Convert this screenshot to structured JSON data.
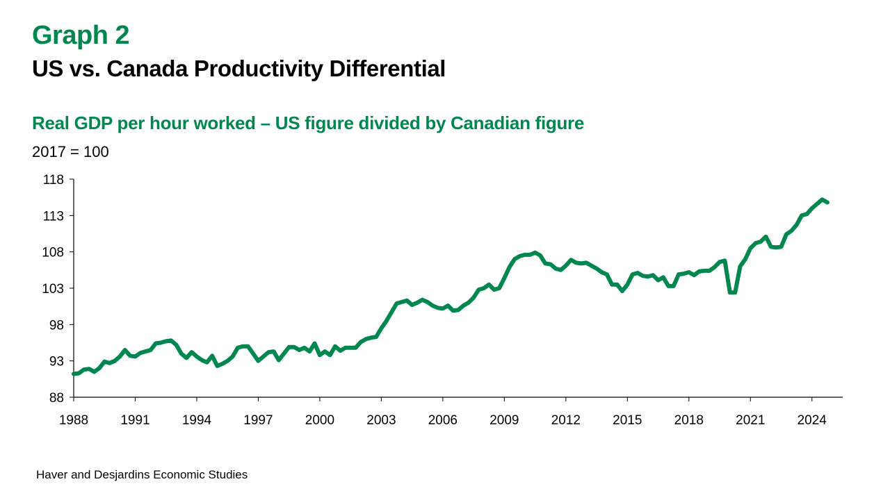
{
  "header": {
    "graph_label": "Graph 2",
    "title": "US vs. Canada Productivity Differential"
  },
  "footer": {
    "source": "Haver and Desjardins Economic Studies"
  },
  "colors": {
    "accent": "#00874E",
    "text": "#000000",
    "axis": "#000000"
  },
  "chart_data": {
    "type": "line",
    "title": "Real GDP per hour worked – US figure divided by Canadian figure",
    "ylabel": "2017 = 100",
    "xlabel": "",
    "xlim": [
      1988,
      2025.5
    ],
    "ylim": [
      88,
      118
    ],
    "xticks": [
      1988,
      1991,
      1994,
      1997,
      2000,
      2003,
      2006,
      2009,
      2012,
      2015,
      2018,
      2021,
      2024
    ],
    "yticks": [
      88,
      93,
      98,
      103,
      108,
      113,
      118
    ],
    "grid": false,
    "series": [
      {
        "color": "#00874E",
        "points": [
          [
            1988.0,
            91.2
          ],
          [
            1988.25,
            91.3
          ],
          [
            1988.5,
            91.8
          ],
          [
            1988.75,
            91.9
          ],
          [
            1989.0,
            91.5
          ],
          [
            1989.25,
            92.0
          ],
          [
            1989.5,
            92.9
          ],
          [
            1989.75,
            92.7
          ],
          [
            1990.0,
            93.0
          ],
          [
            1990.25,
            93.6
          ],
          [
            1990.5,
            94.5
          ],
          [
            1990.75,
            93.7
          ],
          [
            1991.0,
            93.6
          ],
          [
            1991.25,
            94.1
          ],
          [
            1991.5,
            94.3
          ],
          [
            1991.75,
            94.5
          ],
          [
            1992.0,
            95.4
          ],
          [
            1992.25,
            95.5
          ],
          [
            1992.5,
            95.7
          ],
          [
            1992.75,
            95.8
          ],
          [
            1993.0,
            95.2
          ],
          [
            1993.25,
            94.0
          ],
          [
            1993.5,
            93.4
          ],
          [
            1993.75,
            94.2
          ],
          [
            1994.0,
            93.6
          ],
          [
            1994.25,
            93.1
          ],
          [
            1994.5,
            92.8
          ],
          [
            1994.75,
            93.7
          ],
          [
            1995.0,
            92.3
          ],
          [
            1995.25,
            92.6
          ],
          [
            1995.5,
            93.0
          ],
          [
            1995.75,
            93.6
          ],
          [
            1996.0,
            94.8
          ],
          [
            1996.25,
            95.0
          ],
          [
            1996.5,
            95.0
          ],
          [
            1996.75,
            94.0
          ],
          [
            1997.0,
            93.0
          ],
          [
            1997.25,
            93.6
          ],
          [
            1997.5,
            94.2
          ],
          [
            1997.75,
            94.3
          ],
          [
            1998.0,
            93.1
          ],
          [
            1998.25,
            94.0
          ],
          [
            1998.5,
            94.9
          ],
          [
            1998.75,
            94.9
          ],
          [
            1999.0,
            94.5
          ],
          [
            1999.25,
            94.8
          ],
          [
            1999.5,
            94.3
          ],
          [
            1999.75,
            95.4
          ],
          [
            2000.0,
            93.8
          ],
          [
            2000.25,
            94.3
          ],
          [
            2000.5,
            93.8
          ],
          [
            2000.75,
            95.0
          ],
          [
            2001.0,
            94.4
          ],
          [
            2001.25,
            94.8
          ],
          [
            2001.5,
            94.8
          ],
          [
            2001.75,
            94.8
          ],
          [
            2002.0,
            95.6
          ],
          [
            2002.25,
            96.0
          ],
          [
            2002.5,
            96.2
          ],
          [
            2002.75,
            96.3
          ],
          [
            2003.0,
            97.5
          ],
          [
            2003.25,
            98.5
          ],
          [
            2003.5,
            99.7
          ],
          [
            2003.75,
            100.9
          ],
          [
            2004.0,
            101.1
          ],
          [
            2004.25,
            101.3
          ],
          [
            2004.5,
            100.7
          ],
          [
            2004.75,
            101.0
          ],
          [
            2005.0,
            101.4
          ],
          [
            2005.25,
            101.1
          ],
          [
            2005.5,
            100.6
          ],
          [
            2005.75,
            100.3
          ],
          [
            2006.0,
            100.2
          ],
          [
            2006.25,
            100.6
          ],
          [
            2006.5,
            99.9
          ],
          [
            2006.75,
            100.0
          ],
          [
            2007.0,
            100.6
          ],
          [
            2007.25,
            101.0
          ],
          [
            2007.5,
            101.7
          ],
          [
            2007.75,
            102.8
          ],
          [
            2008.0,
            103.0
          ],
          [
            2008.25,
            103.5
          ],
          [
            2008.5,
            102.8
          ],
          [
            2008.75,
            103.0
          ],
          [
            2009.0,
            104.4
          ],
          [
            2009.25,
            105.9
          ],
          [
            2009.5,
            107.0
          ],
          [
            2009.75,
            107.4
          ],
          [
            2010.0,
            107.6
          ],
          [
            2010.25,
            107.6
          ],
          [
            2010.5,
            107.9
          ],
          [
            2010.75,
            107.5
          ],
          [
            2011.0,
            106.4
          ],
          [
            2011.25,
            106.3
          ],
          [
            2011.5,
            105.7
          ],
          [
            2011.75,
            105.5
          ],
          [
            2012.0,
            106.1
          ],
          [
            2012.25,
            106.9
          ],
          [
            2012.5,
            106.5
          ],
          [
            2012.75,
            106.4
          ],
          [
            2013.0,
            106.5
          ],
          [
            2013.25,
            106.1
          ],
          [
            2013.5,
            105.7
          ],
          [
            2013.75,
            105.2
          ],
          [
            2014.0,
            104.9
          ],
          [
            2014.25,
            103.5
          ],
          [
            2014.5,
            103.5
          ],
          [
            2014.75,
            102.6
          ],
          [
            2015.0,
            103.5
          ],
          [
            2015.25,
            104.9
          ],
          [
            2015.5,
            105.1
          ],
          [
            2015.75,
            104.7
          ],
          [
            2016.0,
            104.6
          ],
          [
            2016.25,
            104.8
          ],
          [
            2016.5,
            104.1
          ],
          [
            2016.75,
            104.5
          ],
          [
            2017.0,
            103.3
          ],
          [
            2017.25,
            103.3
          ],
          [
            2017.5,
            104.9
          ],
          [
            2017.75,
            105.0
          ],
          [
            2018.0,
            105.2
          ],
          [
            2018.25,
            104.8
          ],
          [
            2018.5,
            105.3
          ],
          [
            2018.75,
            105.4
          ],
          [
            2019.0,
            105.4
          ],
          [
            2019.25,
            105.9
          ],
          [
            2019.5,
            106.6
          ],
          [
            2019.75,
            106.8
          ],
          [
            2020.0,
            102.4
          ],
          [
            2020.25,
            102.4
          ],
          [
            2020.5,
            106.0
          ],
          [
            2020.75,
            107.0
          ],
          [
            2021.0,
            108.5
          ],
          [
            2021.25,
            109.2
          ],
          [
            2021.5,
            109.4
          ],
          [
            2021.75,
            110.1
          ],
          [
            2022.0,
            108.7
          ],
          [
            2022.25,
            108.6
          ],
          [
            2022.5,
            108.7
          ],
          [
            2022.75,
            110.4
          ],
          [
            2023.0,
            110.9
          ],
          [
            2023.25,
            111.7
          ],
          [
            2023.5,
            113.0
          ],
          [
            2023.75,
            113.2
          ],
          [
            2024.0,
            114.0
          ],
          [
            2024.25,
            114.6
          ],
          [
            2024.5,
            115.2
          ],
          [
            2024.75,
            114.8
          ]
        ]
      }
    ]
  }
}
